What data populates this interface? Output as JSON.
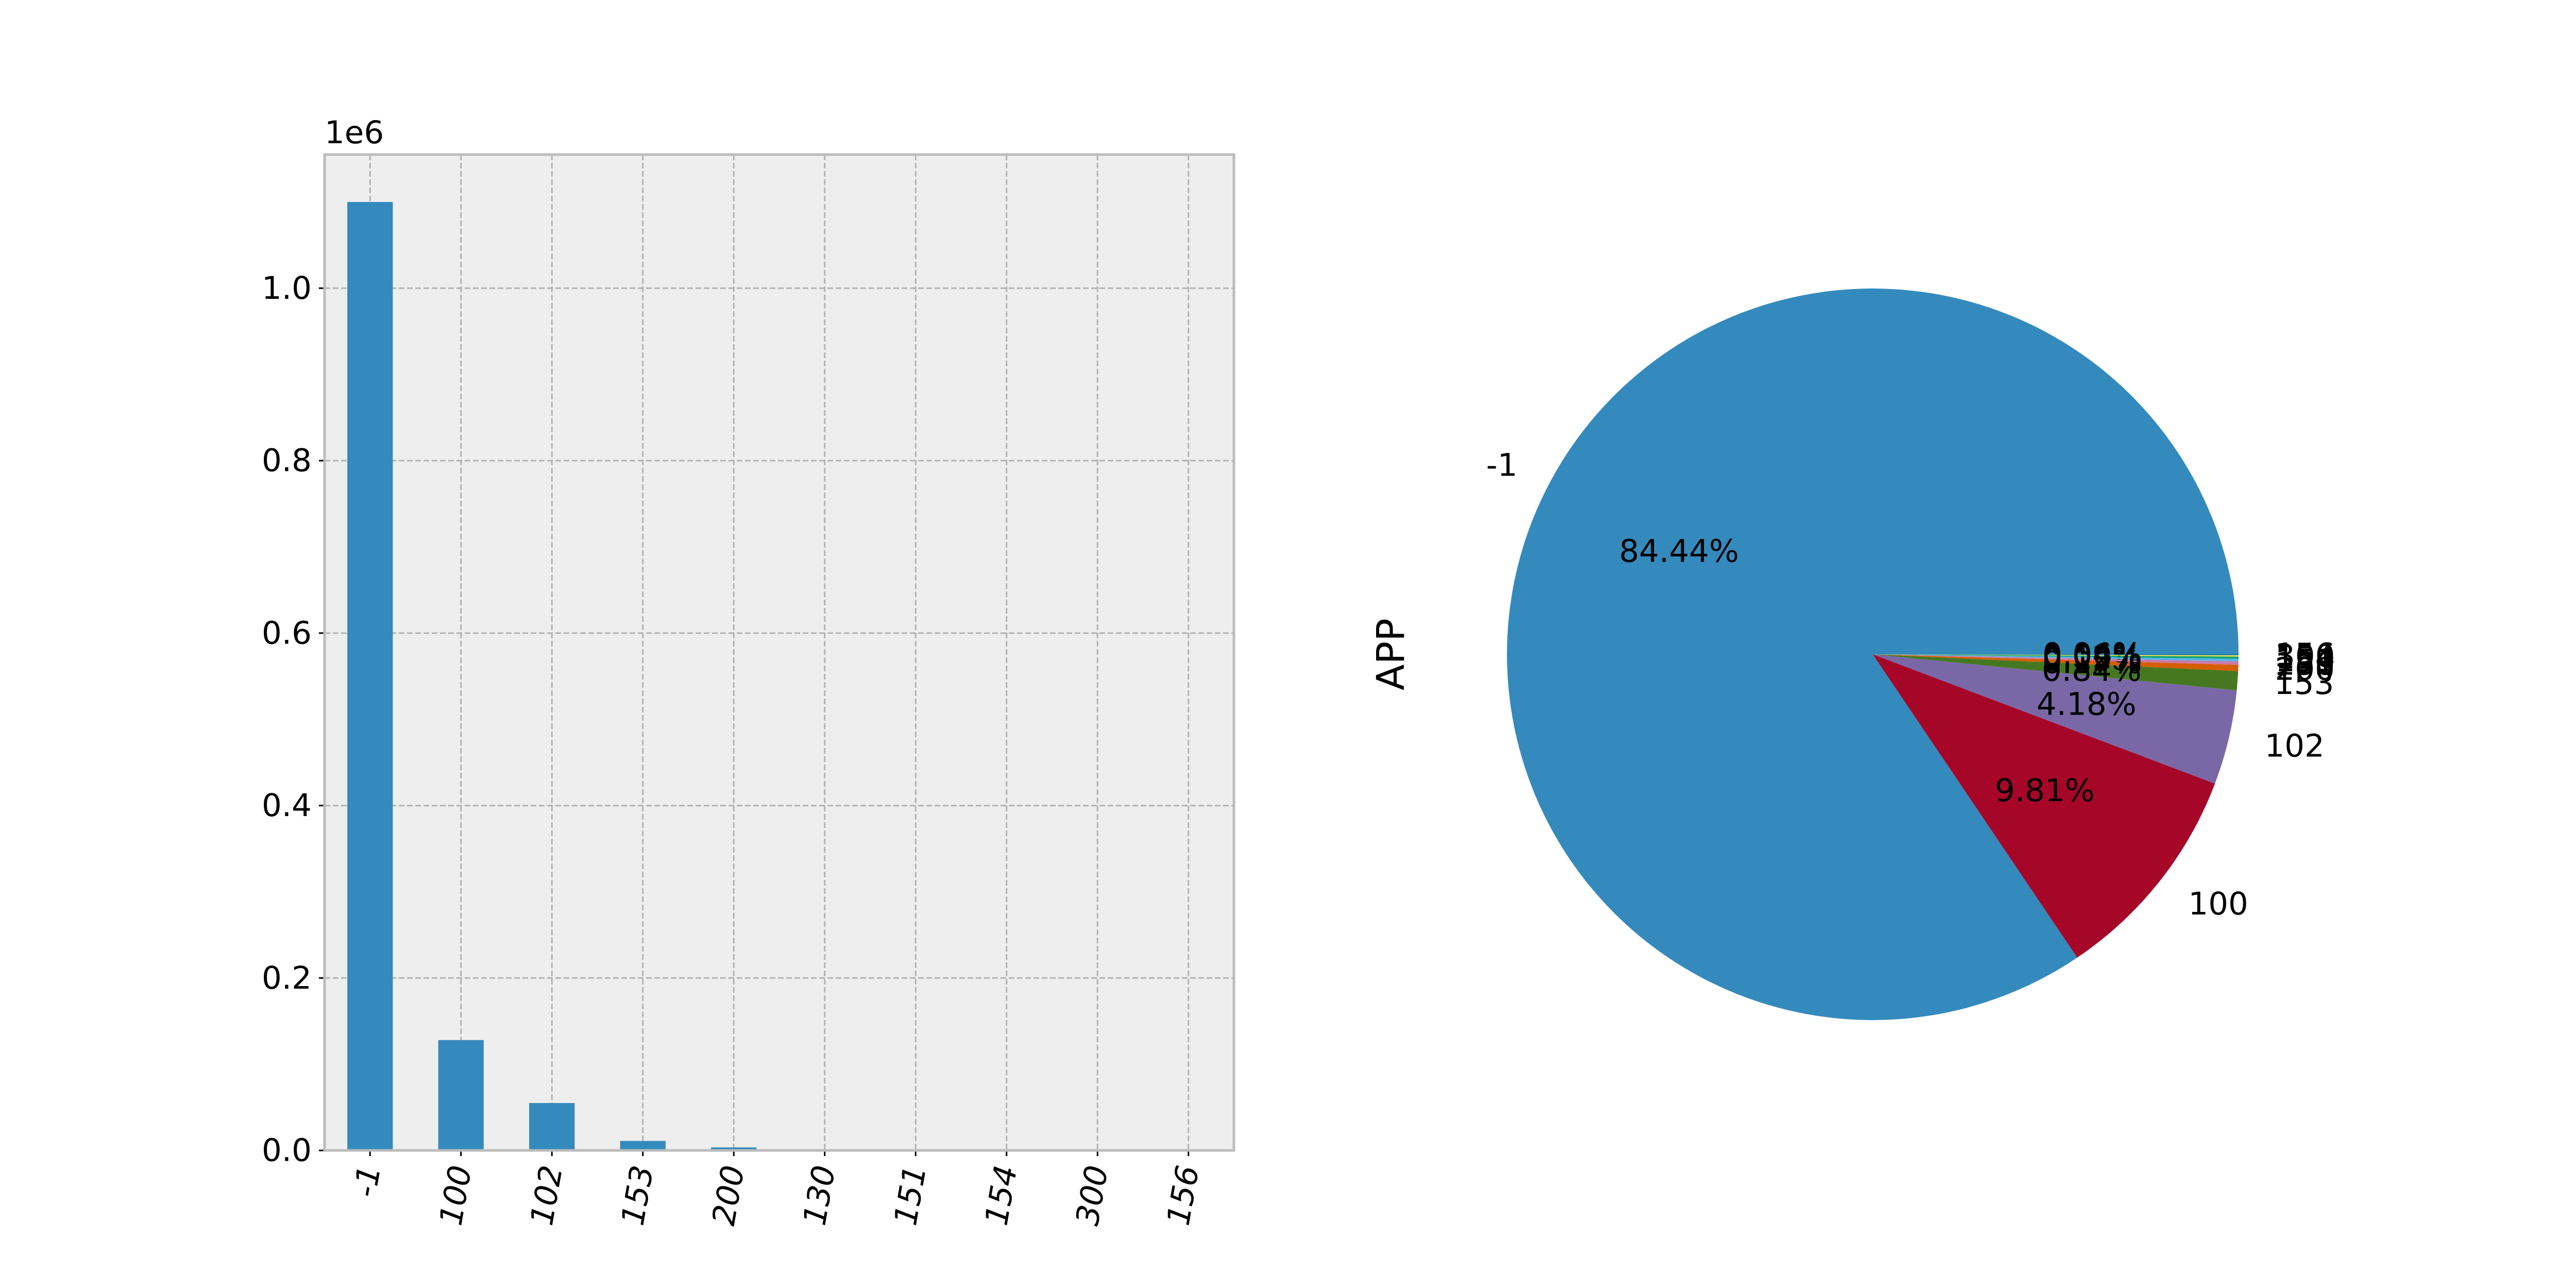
{
  "chart_data": [
    {
      "type": "bar",
      "categories": [
        "-1",
        "100",
        "102",
        "153",
        "200",
        "130",
        "151",
        "154",
        "300",
        "156"
      ],
      "values": [
        1100000,
        128000,
        55000,
        11000,
        3500,
        600,
        400,
        300,
        200,
        100
      ],
      "offset_label": "1e6",
      "yticks": [
        0.0,
        0.2,
        0.4,
        0.6,
        0.8,
        1.0
      ],
      "ytick_labels": [
        "0.0",
        "0.2",
        "0.4",
        "0.6",
        "0.8",
        "1.0"
      ],
      "ylim": [
        0,
        1155000
      ],
      "grid": true,
      "background": "#EEEEEE",
      "bar_color": "#348ABD",
      "xtick_rotation": -80
    },
    {
      "type": "pie",
      "ylabel": "APP",
      "slices": [
        {
          "label": "-1",
          "value": 84.44,
          "pct_label": "84.44%",
          "color": "#348ABD"
        },
        {
          "label": "100",
          "value": 9.81,
          "pct_label": "9.81%",
          "color": "#A60628"
        },
        {
          "label": "102",
          "value": 4.18,
          "pct_label": "4.18%",
          "color": "#7A68A6"
        },
        {
          "label": "153",
          "value": 0.84,
          "pct_label": "0.84%",
          "color": "#467821"
        },
        {
          "label": "200",
          "value": 0.27,
          "pct_label": "0.27%",
          "color": "#D55E00"
        },
        {
          "label": "130",
          "value": 0.15,
          "pct_label": "0.15%",
          "color": "#CC79A7"
        },
        {
          "label": "151",
          "value": 0.12,
          "pct_label": "0.12%",
          "color": "#56B4E9"
        },
        {
          "label": "154",
          "value": 0.09,
          "pct_label": "0.09%",
          "color": "#009E73"
        },
        {
          "label": "300",
          "value": 0.06,
          "pct_label": "0.06%",
          "color": "#F0E442"
        },
        {
          "label": "156",
          "value": 0.04,
          "pct_label": "0.04%",
          "color": "#0072B2"
        }
      ]
    }
  ]
}
